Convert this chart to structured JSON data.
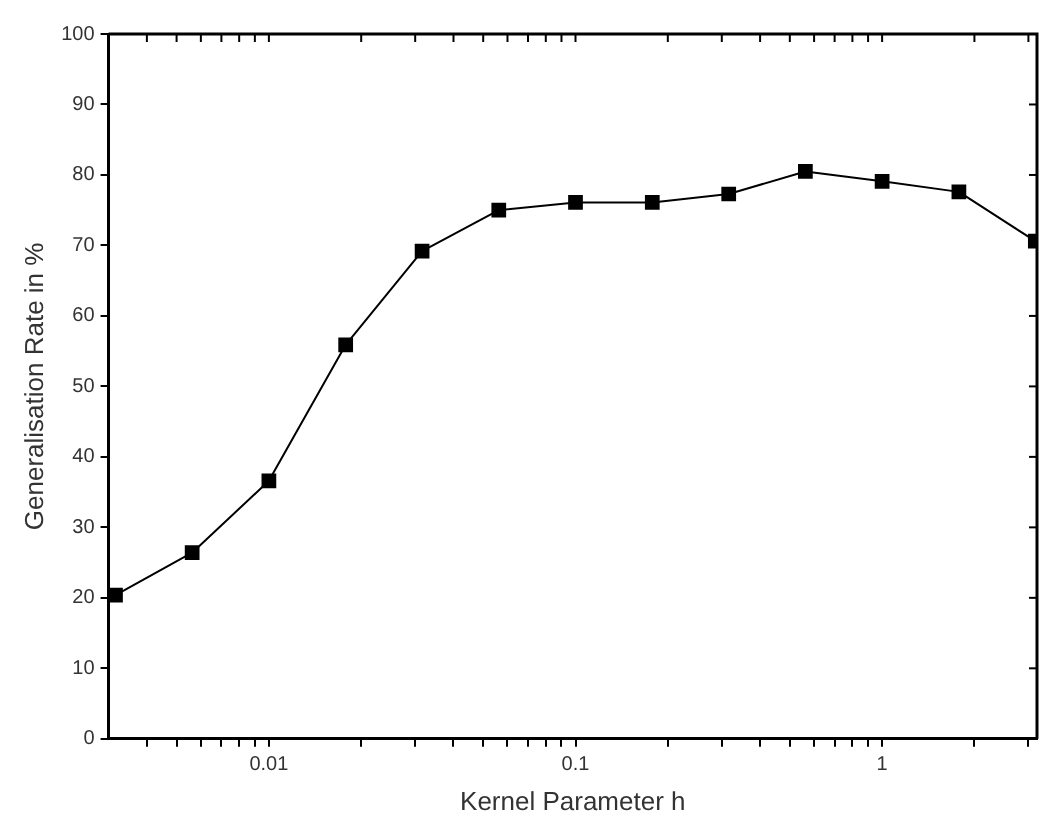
{
  "chart_data": {
    "type": "line",
    "xlabel": "Kernel Parameter h",
    "ylabel": "Generalisation Rate in %",
    "x": [
      0.00316,
      0.00562,
      0.01,
      0.0178,
      0.0316,
      0.0562,
      0.1,
      0.178,
      0.316,
      0.562,
      1,
      1.78,
      3.16
    ],
    "series": [
      {
        "color": "#000000",
        "values": [
          20.4,
          26.4,
          36.6,
          55.9,
          69.2,
          75.0,
          76.1,
          76.1,
          77.3,
          80.5,
          79.1,
          77.6,
          70.6
        ]
      }
    ],
    "log": "x",
    "xlim": [
      0.003,
      3.2
    ],
    "xticks": [
      {
        "value": 0.004,
        "label": null
      },
      {
        "value": 0.005,
        "label": null
      },
      {
        "value": 0.006,
        "label": null
      },
      {
        "value": 0.007,
        "label": null
      },
      {
        "value": 0.008,
        "label": null
      },
      {
        "value": 0.009,
        "label": null
      },
      0.01,
      {
        "value": 0.02,
        "label": null
      },
      {
        "value": 0.03,
        "label": null
      },
      {
        "value": 0.04,
        "label": null
      },
      {
        "value": 0.05,
        "label": null
      },
      {
        "value": 0.06,
        "label": null
      },
      {
        "value": 0.07,
        "label": null
      },
      {
        "value": 0.08,
        "label": null
      },
      {
        "value": 0.09,
        "label": null
      },
      0.1,
      {
        "value": 0.2,
        "label": null
      },
      {
        "value": 0.3,
        "label": null
      },
      {
        "value": 0.4,
        "label": null
      },
      {
        "value": 0.5,
        "label": null
      },
      {
        "value": 0.6,
        "label": null
      },
      {
        "value": 0.7,
        "label": null
      },
      {
        "value": 0.8,
        "label": null
      },
      {
        "value": 0.9,
        "label": null
      },
      1,
      {
        "value": 2,
        "label": null
      },
      {
        "value": 3,
        "label": null
      }
    ],
    "ylim": [
      0,
      100
    ],
    "yticks": [
      0,
      10,
      20,
      30,
      40,
      50,
      60,
      70,
      80,
      90,
      100
    ],
    "grid": false,
    "legend": false,
    "marker": "square",
    "line_style": "solid"
  }
}
